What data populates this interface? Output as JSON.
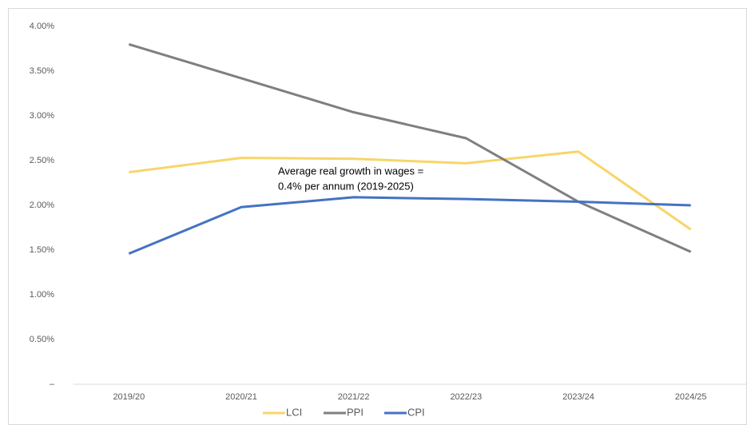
{
  "chart_data": {
    "type": "line",
    "categories": [
      "2019/20",
      "2020/21",
      "2021/22",
      "2022/23",
      "2023/24",
      "2024/25"
    ],
    "series": [
      {
        "name": "LCI",
        "color": "#f8d568",
        "values": [
          2.37,
          2.53,
          2.52,
          2.47,
          2.6,
          1.73
        ]
      },
      {
        "name": "PPI",
        "color": "#7f7f7f",
        "values": [
          3.8,
          3.42,
          3.04,
          2.75,
          2.04,
          1.48
        ]
      },
      {
        "name": "CPI",
        "color": "#4472c4",
        "values": [
          1.46,
          1.98,
          2.09,
          2.07,
          2.04,
          2.0
        ]
      }
    ],
    "ylim": [
      0,
      4
    ],
    "yticks": [
      {
        "value": 0,
        "label": "–"
      },
      {
        "value": 0.5,
        "label": "0.50%"
      },
      {
        "value": 1,
        "label": "1.00%"
      },
      {
        "value": 1.5,
        "label": "1.50%"
      },
      {
        "value": 2,
        "label": "2.00%"
      },
      {
        "value": 2.5,
        "label": "2.50%"
      },
      {
        "value": 3,
        "label": "3.00%"
      },
      {
        "value": 3.5,
        "label": "3.50%"
      },
      {
        "value": 4,
        "label": "4.00%"
      }
    ],
    "grid": false,
    "legend": "bottom",
    "annotation": [
      "Average real growth in wages =",
      "0.4% per annum (2019-2025)"
    ]
  }
}
